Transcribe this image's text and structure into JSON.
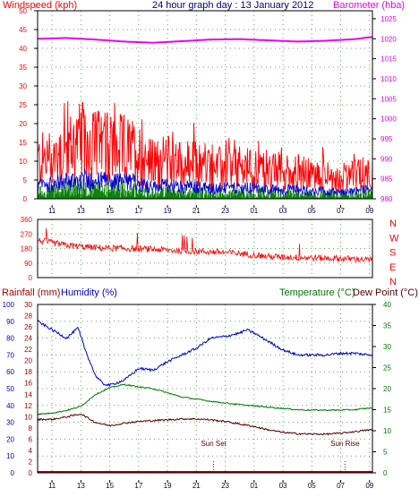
{
  "header": {
    "windspeed_label": "Windspeed (kph)",
    "title": "24 hour graph day : 13 January 2012",
    "barometer_label": "Barometer (hba)"
  },
  "middle": {
    "compass_labels": [
      "N",
      "W",
      "S",
      "E",
      "N"
    ]
  },
  "bottom_header": {
    "rainfall_label": "Rainfall (mm)",
    "humidity_label": "Humidity (%)",
    "temperature_label": "Temperature (°C)",
    "dewpoint_label": "Dew Point (°C)"
  },
  "annotations": {
    "sunset": "Sun Set",
    "sunrise": "Sun Rise"
  },
  "colors": {
    "windspeed": "#ff0000",
    "gust": "#0000cc",
    "green": "#008000",
    "barometer": "#ee00ee",
    "humidity": "#0000cc",
    "temperature": "#007700",
    "dewpoint": "#550000",
    "rain": "#aa0000",
    "grid": "#55aa55",
    "axis_text": "#000066"
  },
  "chart_data": [
    {
      "type": "line",
      "title": "24 hour graph day : 13 January 2012",
      "xlabel": "",
      "x_ticks": [
        "11",
        "13",
        "15",
        "17",
        "19",
        "21",
        "23",
        "01",
        "03",
        "05",
        "07",
        "09"
      ],
      "left_axis": {
        "label": "Windspeed (kph)",
        "ticks": [
          0,
          5,
          10,
          15,
          20,
          25,
          30,
          35,
          40,
          45,
          50
        ],
        "ylim": [
          0,
          50
        ]
      },
      "right_axis": {
        "label": "Barometer (hba)",
        "ticks": [
          980,
          985,
          990,
          995,
          1000,
          1005,
          1010,
          1015,
          1020,
          1025
        ],
        "ylim": [
          980,
          1027
        ]
      },
      "series": [
        {
          "name": "Windspeed (kph)",
          "axis": "left",
          "x": [
            10,
            11,
            12,
            13,
            14,
            15,
            16,
            17,
            18,
            19,
            20,
            21,
            22,
            23,
            24,
            25,
            26,
            27,
            28,
            29,
            30,
            31,
            32,
            33
          ],
          "values": [
            10,
            11,
            13,
            15,
            14,
            13,
            13,
            12,
            9,
            10,
            9,
            9,
            8,
            8,
            8,
            8,
            7,
            7,
            7,
            6,
            6,
            5,
            6,
            7
          ]
        },
        {
          "name": "Barometer (hba)",
          "axis": "right",
          "x": [
            10,
            12,
            14,
            16,
            18,
            20,
            22,
            24,
            26,
            28,
            30,
            32,
            33
          ],
          "values": [
            1020,
            1020.2,
            1019.8,
            1019.3,
            1019.0,
            1019.4,
            1019.8,
            1019.9,
            1019.6,
            1019.3,
            1019.5,
            1019.9,
            1020.4
          ]
        }
      ]
    },
    {
      "type": "line",
      "title": "",
      "x_ticks": [
        "11",
        "13",
        "15",
        "17",
        "19",
        "21",
        "23",
        "01",
        "03",
        "05",
        "07",
        "09"
      ],
      "left_axis": {
        "label": "",
        "ticks": [
          0,
          90,
          180,
          270,
          360
        ],
        "ylim": [
          0,
          360
        ]
      },
      "right_labels": [
        "N",
        "W",
        "S",
        "E",
        "N"
      ],
      "series": [
        {
          "name": "",
          "x": [
            10,
            12,
            14,
            16,
            18,
            20,
            22,
            24,
            26,
            28,
            30,
            32,
            33
          ],
          "values": [
            230,
            200,
            185,
            180,
            175,
            165,
            160,
            150,
            130,
            125,
            120,
            115,
            110
          ]
        }
      ]
    },
    {
      "type": "line",
      "title": "",
      "x_ticks": [
        "11",
        "13",
        "15",
        "17",
        "19",
        "21",
        "23",
        "01",
        "03",
        "05",
        "07",
        "09"
      ],
      "left_axis_rainfall": {
        "label": "Rainfall (mm)",
        "ticks": [
          0,
          2,
          4,
          6,
          8,
          10,
          12,
          14,
          16,
          18,
          20,
          22,
          24,
          26,
          28,
          30
        ],
        "ylim": [
          0,
          30
        ]
      },
      "left_axis_humidity": {
        "label": "Humidity (%)",
        "ticks": [
          0,
          10,
          20,
          30,
          40,
          50,
          60,
          70,
          80,
          90,
          100
        ],
        "ylim": [
          0,
          100
        ]
      },
      "right_axis": {
        "label": "Temperature (°C)",
        "ticks": [
          0,
          5,
          10,
          15,
          20,
          25,
          30,
          35,
          40
        ],
        "ylim": [
          0,
          40
        ]
      },
      "series": [
        {
          "name": "Humidity (%)",
          "axis": "humidity",
          "x": [
            10,
            11,
            12,
            12.8,
            13.3,
            14,
            14.5,
            15,
            16,
            17,
            18,
            19,
            20,
            21,
            22,
            23,
            24,
            24.5,
            25,
            26,
            27,
            28,
            29,
            30,
            31,
            32,
            33
          ],
          "values": [
            90,
            85,
            80,
            86,
            73,
            58,
            53,
            52,
            55,
            62,
            61,
            66,
            70,
            74,
            80,
            81,
            83,
            85,
            83,
            78,
            73,
            70,
            70,
            70,
            71,
            71,
            70
          ]
        },
        {
          "name": "Temperature (°C)",
          "axis": "right",
          "x": [
            10,
            11,
            12,
            13,
            14,
            15,
            16,
            17,
            18,
            19,
            20,
            21,
            22,
            23,
            24,
            25,
            26,
            27,
            28,
            29,
            30,
            31,
            32,
            33
          ],
          "values": [
            13.9,
            14.2,
            14.8,
            15.8,
            18.6,
            20.2,
            21.0,
            20.4,
            20.0,
            19.0,
            18.0,
            17.5,
            17.0,
            16.6,
            16.2,
            15.9,
            15.6,
            15.3,
            15.0,
            14.9,
            14.9,
            14.9,
            15.0,
            15.4
          ]
        },
        {
          "name": "Dew Point (°C)",
          "axis": "right",
          "x": [
            10,
            11,
            12,
            13,
            14,
            15,
            16,
            17,
            18,
            19,
            20,
            21,
            22,
            23,
            24,
            25,
            26,
            27,
            28,
            29,
            30,
            31,
            32,
            33
          ],
          "values": [
            12.7,
            12.7,
            13.3,
            14.0,
            12.0,
            11.2,
            11.8,
            12.2,
            12.4,
            12.6,
            12.8,
            12.8,
            12.6,
            12.2,
            11.6,
            11.0,
            10.2,
            9.6,
            9.3,
            9.2,
            9.2,
            9.4,
            9.8,
            10.2
          ]
        },
        {
          "name": "Rainfall (mm)",
          "axis": "rainfall",
          "x": [
            10,
            33
          ],
          "values": [
            0,
            0
          ]
        }
      ],
      "annotations": [
        {
          "x": 22.2,
          "text": "Sun Set"
        },
        {
          "x": 31.3,
          "text": "Sun Rise"
        }
      ]
    }
  ]
}
